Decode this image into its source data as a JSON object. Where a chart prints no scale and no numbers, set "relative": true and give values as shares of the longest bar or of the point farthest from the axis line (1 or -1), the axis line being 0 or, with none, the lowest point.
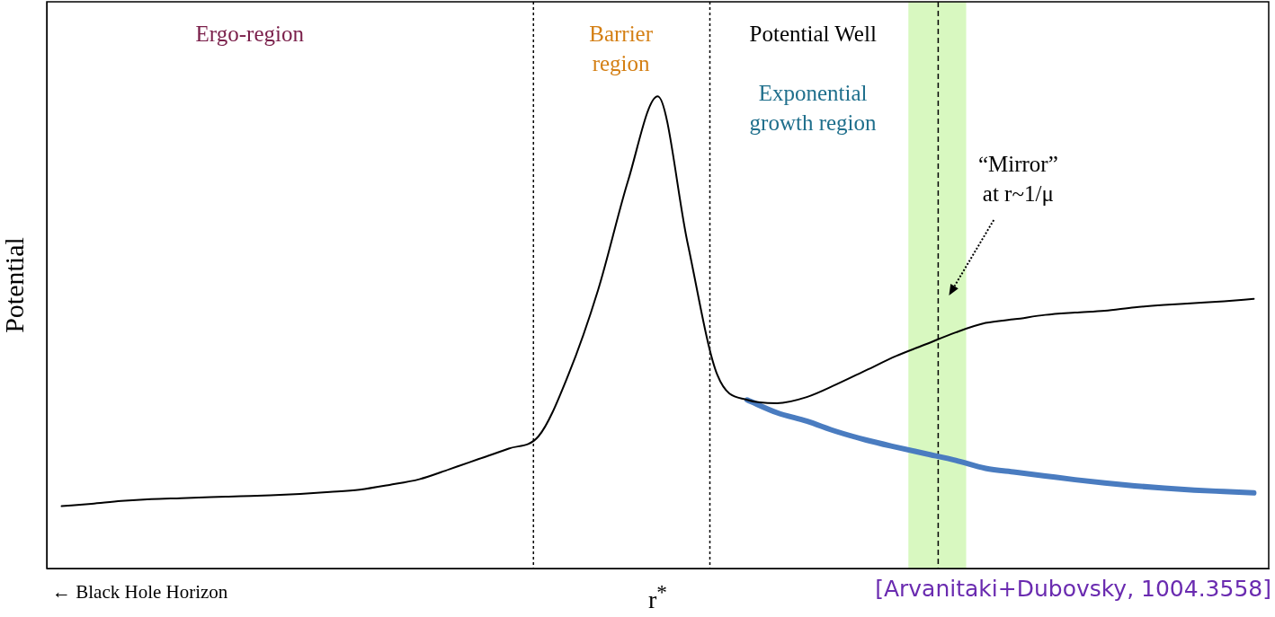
{
  "chart_data": {
    "type": "line",
    "relative": true,
    "ylabel": "Potential",
    "xlabel": "r$^{*}$",
    "grid": false,
    "legend": false,
    "marker": "none",
    "line_style": "solid",
    "categories": [
      null,
      null,
      null,
      null,
      null,
      null,
      null,
      null,
      null,
      null,
      null,
      null,
      null,
      null,
      null,
      null,
      null,
      null,
      null,
      null,
      null,
      null,
      null,
      null,
      null,
      null,
      null,
      null,
      null,
      null,
      null,
      null,
      null,
      null,
      null,
      null,
      null,
      null,
      null,
      null,
      null
    ],
    "series": [
      {
        "color": "#000000",
        "values": [
          0.132,
          0.137,
          0.143,
          0.147,
          0.149,
          0.151,
          0.153,
          0.155,
          0.158,
          0.162,
          0.167,
          0.177,
          0.189,
          0.21,
          0.232,
          0.254,
          0.28,
          0.41,
          0.59,
          0.82,
          1.0,
          0.69,
          0.41,
          0.357,
          0.35,
          0.363,
          0.39,
          0.42,
          0.45,
          0.475,
          0.5,
          0.52,
          0.528,
          0.537,
          0.542,
          0.546,
          0.553,
          0.558,
          0.562,
          0.566,
          0.571
        ]
      },
      {
        "color": "#4a7cc0",
        "values": [
          null,
          null,
          null,
          null,
          null,
          null,
          null,
          null,
          null,
          null,
          null,
          null,
          null,
          null,
          null,
          null,
          null,
          null,
          null,
          null,
          null,
          null,
          null,
          0.357,
          0.33,
          0.312,
          0.29,
          0.272,
          0.257,
          0.243,
          0.229,
          0.212,
          0.204,
          0.196,
          0.188,
          0.181,
          0.175,
          0.17,
          0.166,
          0.163,
          0.16
        ]
      }
    ],
    "annotations": [
      "Ergo-region",
      "Barrier\nregion",
      "Potential Well",
      "Exponential\ngrowth region",
      "“Mirror”\nat r~1/μ",
      "← Black Hole Horizon",
      "[Arvanitaki+Dubovsky, 1004.3558]"
    ]
  }
}
